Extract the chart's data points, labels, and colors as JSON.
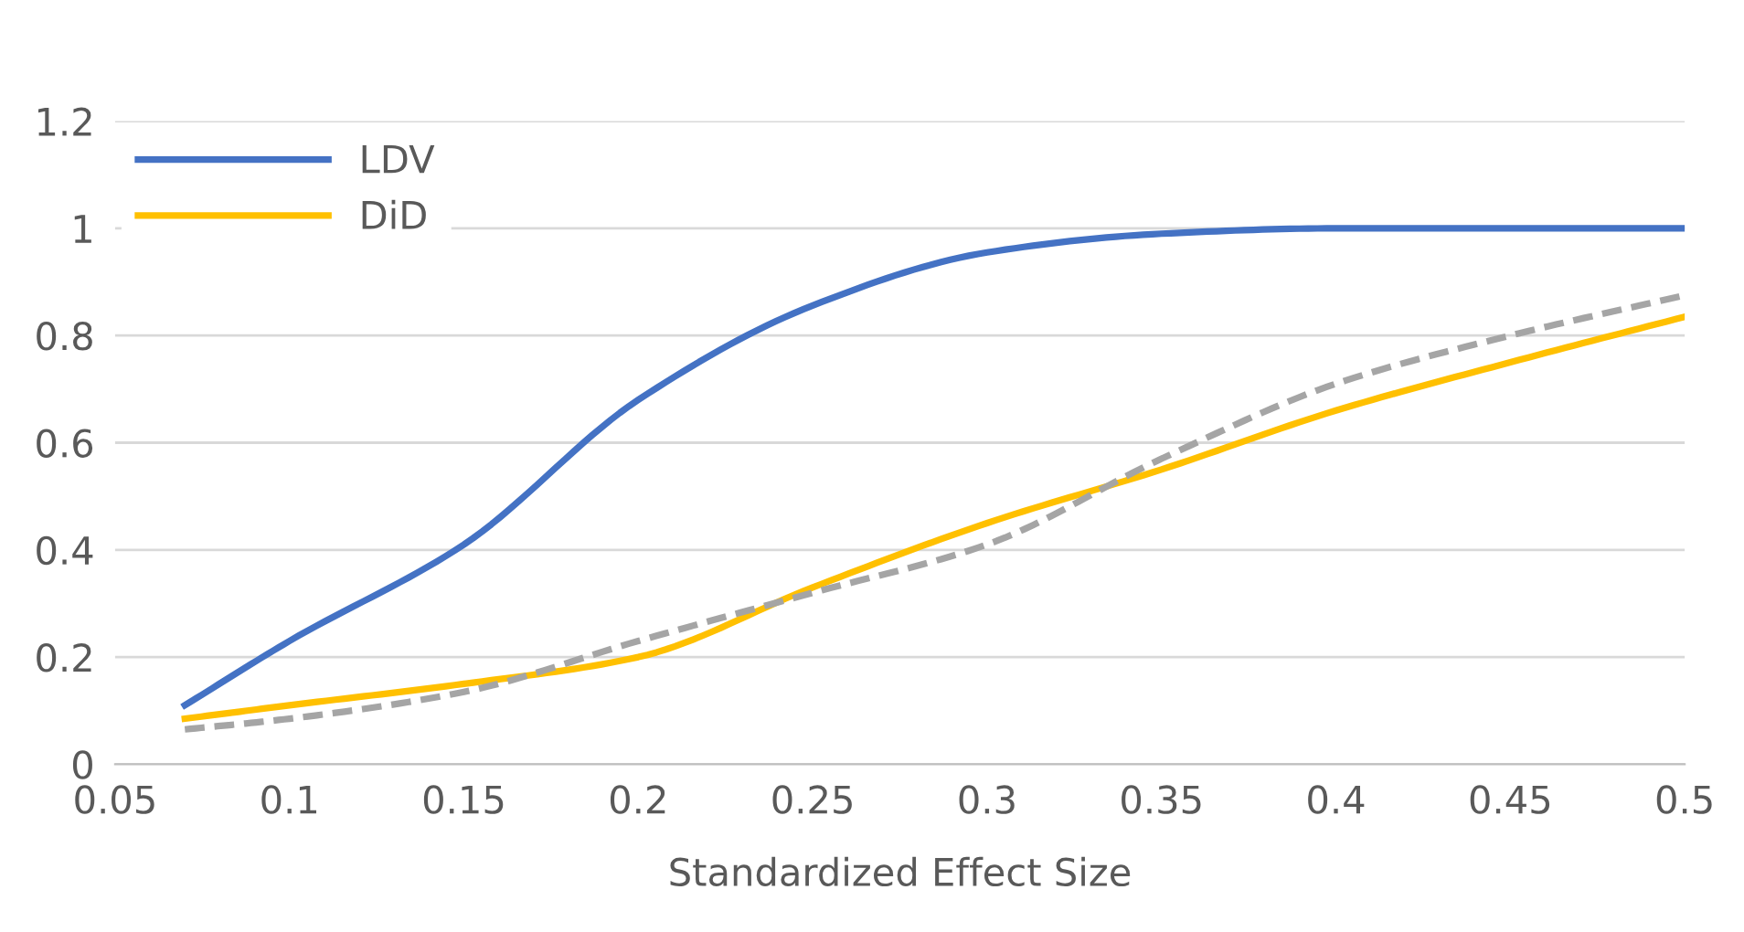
{
  "chart_data": {
    "type": "line",
    "xlabel": "Standardized Effect Size",
    "x": [
      0.07,
      0.1,
      0.15,
      0.2,
      0.25,
      0.3,
      0.35,
      0.4,
      0.45,
      0.5
    ],
    "series": [
      {
        "name": "LDV",
        "color": "#4472c4",
        "values": [
          0.11,
          0.23,
          0.41,
          0.68,
          0.856,
          0.955,
          0.99,
          1.0,
          1.0,
          1.0
        ]
      },
      {
        "name": "DiD",
        "color": "#ffc000",
        "values": [
          0.085,
          0.11,
          0.15,
          0.2,
          0.33,
          0.45,
          0.55,
          0.66,
          0.75,
          0.835
        ]
      },
      {
        "color": "#a5a5a5",
        "line_style": "dashed",
        "values": [
          0.065,
          0.085,
          0.135,
          0.23,
          0.32,
          0.41,
          0.57,
          0.71,
          0.8,
          0.875
        ]
      }
    ],
    "xlim": [
      0.05,
      0.5
    ],
    "xticks": [
      0.05,
      0.1,
      0.15,
      0.2,
      0.25,
      0.3,
      0.35,
      0.4,
      0.45,
      0.5
    ],
    "ylim": [
      0,
      1.2
    ],
    "yticks": [
      0,
      0.2,
      0.4,
      0.6,
      0.8,
      1,
      1.2
    ],
    "grid": "y",
    "legend": "top left",
    "marker": "none",
    "line_style": "solid"
  }
}
